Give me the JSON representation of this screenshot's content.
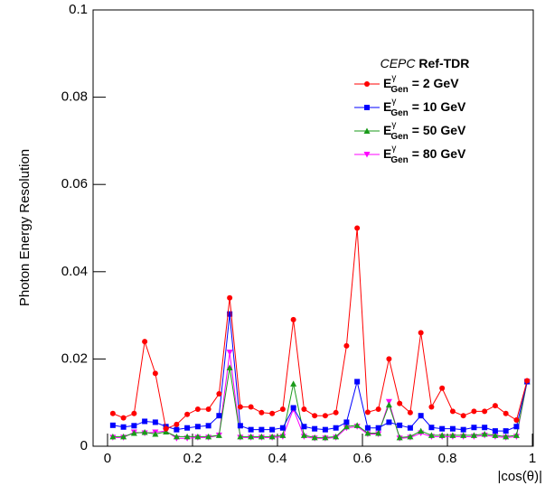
{
  "chart_data": {
    "type": "line",
    "y_label": "Photon Energy Resolution",
    "x_label": "|cos(θ)|",
    "xlim": [
      -0.034,
      1.002
    ],
    "xticks": [
      0,
      0.2,
      0.4,
      0.6,
      0.8,
      1
    ],
    "ylim": [
      0,
      0.1
    ],
    "yticks": [
      0,
      0.02,
      0.04,
      0.06,
      0.08,
      0.1
    ],
    "legend_corner": "upper right",
    "legend_title": {
      "experiment": "CEPC",
      "document": "Ref-TDR"
    },
    "legend_symbol": {
      "base": "E",
      "sup": "γ",
      "sub": "Gen"
    },
    "x": [
      0.0125,
      0.0375,
      0.0625,
      0.0875,
      0.1125,
      0.1375,
      0.1625,
      0.1875,
      0.2125,
      0.2375,
      0.2625,
      0.2875,
      0.3125,
      0.3375,
      0.3625,
      0.3875,
      0.4125,
      0.4375,
      0.4625,
      0.4875,
      0.5125,
      0.5375,
      0.5625,
      0.5875,
      0.6125,
      0.6375,
      0.6625,
      0.6875,
      0.7125,
      0.7375,
      0.7625,
      0.7875,
      0.8125,
      0.8375,
      0.8625,
      0.8875,
      0.9125,
      0.9375,
      0.9625,
      0.9875
    ],
    "series": [
      {
        "name": "= 2 GeV",
        "color": "#ff0000",
        "marker": "circle",
        "values": [
          0.0075,
          0.0065,
          0.0075,
          0.024,
          0.0167,
          0.004,
          0.005,
          0.0073,
          0.0085,
          0.0085,
          0.012,
          0.034,
          0.009,
          0.009,
          0.0077,
          0.0075,
          0.0085,
          0.029,
          0.0085,
          0.007,
          0.007,
          0.0077,
          0.023,
          0.05,
          0.0078,
          0.0085,
          0.02,
          0.0098,
          0.0077,
          0.026,
          0.009,
          0.0133,
          0.008,
          0.007,
          0.008,
          0.008,
          0.0093,
          0.0075,
          0.006,
          0.015
        ]
      },
      {
        "name": "= 10 GeV",
        "color": "#0000ff",
        "marker": "square",
        "values": [
          0.0048,
          0.0044,
          0.0047,
          0.0057,
          0.0055,
          0.0045,
          0.0038,
          0.0042,
          0.0045,
          0.0047,
          0.007,
          0.0303,
          0.0047,
          0.0038,
          0.0038,
          0.0038,
          0.0042,
          0.0088,
          0.0045,
          0.004,
          0.0038,
          0.0042,
          0.0055,
          0.0148,
          0.0042,
          0.0042,
          0.0055,
          0.0048,
          0.0042,
          0.007,
          0.0043,
          0.004,
          0.004,
          0.0038,
          0.0043,
          0.0043,
          0.0035,
          0.0035,
          0.0045,
          0.0148
        ]
      },
      {
        "name": "= 50 GeV",
        "color": "#1a9a1a",
        "marker": "triangle-up",
        "values": [
          0.0022,
          0.0022,
          0.003,
          0.0032,
          0.0028,
          0.0033,
          0.0022,
          0.0022,
          0.0022,
          0.0022,
          0.0025,
          0.018,
          0.0022,
          0.0022,
          0.0022,
          0.0022,
          0.0025,
          0.0143,
          0.0025,
          0.002,
          0.002,
          0.0022,
          0.0045,
          0.0048,
          0.003,
          0.003,
          0.0095,
          0.002,
          0.0022,
          0.0035,
          0.0025,
          0.0025,
          0.0025,
          0.0025,
          0.0025,
          0.0028,
          0.0025,
          0.0022,
          0.0025,
          0.0148
        ]
      },
      {
        "name": "= 80 GeV",
        "color": "#ff00ff",
        "marker": "triangle-down",
        "values": [
          0.002,
          0.002,
          0.0032,
          0.003,
          0.0032,
          0.0035,
          0.0018,
          0.0018,
          0.002,
          0.002,
          0.0025,
          0.0215,
          0.002,
          0.002,
          0.002,
          0.002,
          0.0022,
          0.0085,
          0.0022,
          0.0018,
          0.0018,
          0.002,
          0.0042,
          0.0045,
          0.0028,
          0.0028,
          0.0102,
          0.0018,
          0.002,
          0.003,
          0.0022,
          0.0022,
          0.0022,
          0.0022,
          0.0022,
          0.0025,
          0.0022,
          0.002,
          0.0022,
          0.0148
        ]
      }
    ]
  }
}
